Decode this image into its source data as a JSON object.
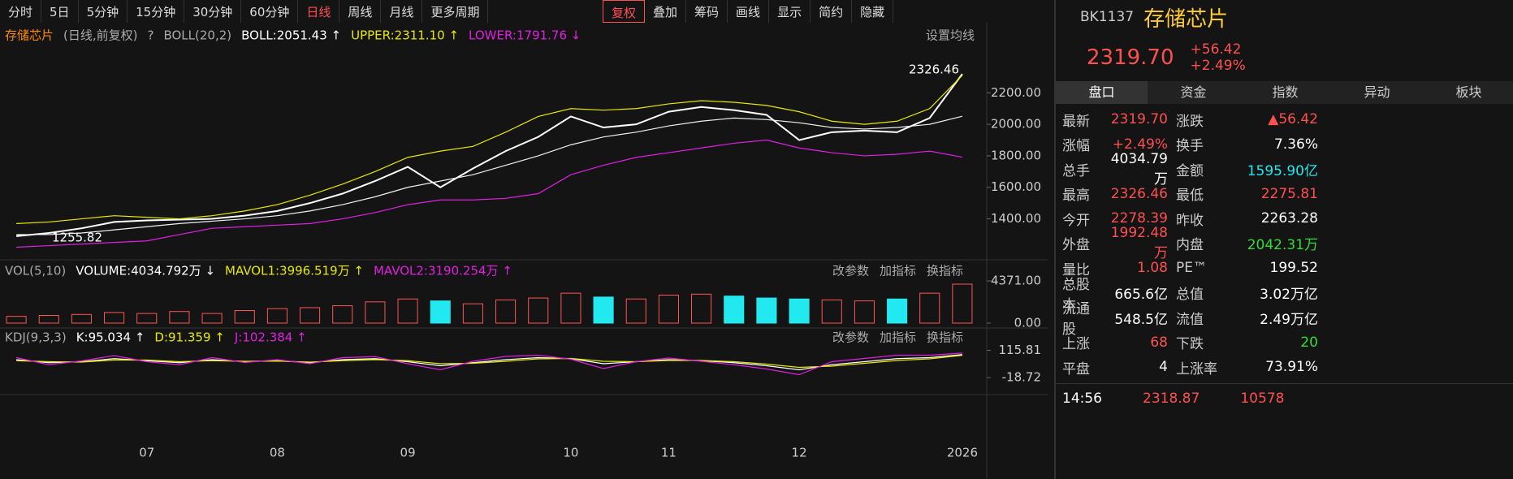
{
  "toolbar": {
    "periods": [
      "分时",
      "5日",
      "5分钟",
      "15分钟",
      "30分钟",
      "60分钟",
      "日线",
      "周线",
      "月线",
      "更多周期"
    ],
    "tools": [
      "复权",
      "叠加",
      "筹码",
      "画线",
      "显示",
      "简约",
      "隐藏"
    ]
  },
  "legend": {
    "name": "存储芯片",
    "mode": "(日线,前复权)",
    "help": "?",
    "indicator": "BOLL(20,2)",
    "boll": "BOLL:2051.43 ↑",
    "upper": "UPPER:2311.10 ↑",
    "lower": "LOWER:1791.76 ↓",
    "setting": "设置均线"
  },
  "chart_data": [
    {
      "type": "line",
      "categories": [
        null,
        null,
        null,
        null,
        "07",
        null,
        null,
        null,
        "08",
        null,
        null,
        null,
        "09",
        null,
        null,
        null,
        null,
        "10",
        null,
        null,
        "11",
        null,
        null,
        null,
        "12",
        null,
        null,
        null,
        null,
        "2026"
      ],
      "series": [
        {
          "name": "close",
          "color": "#ffffff",
          "values": [
            1290,
            1310,
            1340,
            1380,
            1390,
            1395,
            1400,
            1420,
            1450,
            1500,
            1560,
            1640,
            1730,
            1600,
            1720,
            1830,
            1920,
            2050,
            1980,
            2000,
            2080,
            2110,
            2090,
            2060,
            1900,
            1950,
            1960,
            1950,
            2040,
            2319.7
          ]
        },
        {
          "name": "upper",
          "color": "#e8e800",
          "values": [
            1370,
            1380,
            1400,
            1420,
            1410,
            1400,
            1420,
            1450,
            1490,
            1550,
            1620,
            1700,
            1790,
            1830,
            1860,
            1950,
            2050,
            2100,
            2090,
            2100,
            2130,
            2150,
            2140,
            2120,
            2080,
            2020,
            2000,
            2020,
            2100,
            2311.1
          ]
        },
        {
          "name": "mid",
          "color": "#f0f0f0",
          "values": [
            1300,
            1300,
            1310,
            1330,
            1350,
            1370,
            1385,
            1400,
            1420,
            1450,
            1490,
            1540,
            1600,
            1640,
            1680,
            1740,
            1800,
            1870,
            1920,
            1950,
            1990,
            2020,
            2040,
            2030,
            2010,
            1980,
            1970,
            1980,
            2000,
            2051.43
          ]
        },
        {
          "name": "lower",
          "color": "#e020e0",
          "values": [
            1220,
            1230,
            1240,
            1250,
            1260,
            1300,
            1340,
            1350,
            1360,
            1370,
            1400,
            1440,
            1490,
            1520,
            1520,
            1530,
            1560,
            1680,
            1740,
            1790,
            1820,
            1850,
            1880,
            1900,
            1850,
            1820,
            1800,
            1810,
            1830,
            1791.76
          ]
        }
      ],
      "ylim": [
        1140,
        2480
      ],
      "yticks": [
        {
          "value": 2200,
          "label": "2200.00"
        },
        {
          "value": 2000,
          "label": "2000.00"
        },
        {
          "value": 1800,
          "label": "1800.00"
        },
        {
          "value": 1600,
          "label": "1600.00"
        },
        {
          "value": 1400,
          "label": "1400.00"
        }
      ],
      "annotations": [
        "2326.46",
        "1255.82"
      ]
    },
    {
      "type": "bar",
      "header": [
        "VOL(5,10)",
        "VOLUME:4034.792万 ↓",
        "MAVOL1:3996.519万 ↑",
        "MAVOL2:3190.254万 ↑"
      ],
      "buttons": [
        "改参数",
        "加指标",
        "换指标"
      ],
      "values": [
        700,
        800,
        900,
        1100,
        1000,
        1200,
        1000,
        1300,
        1500,
        1600,
        1800,
        2200,
        2500,
        2300,
        2000,
        2400,
        2600,
        3100,
        2700,
        2500,
        2900,
        3000,
        2800,
        2600,
        2500,
        2400,
        2300,
        2500,
        3100,
        4034.792
      ],
      "up_color": "#ff5555",
      "down_color": "#22e8f0",
      "ylim": [
        0,
        4371
      ],
      "yticks": [
        {
          "value": 4371,
          "label": "4371.00"
        },
        {
          "value": 0,
          "label": "0.00"
        }
      ]
    },
    {
      "type": "line",
      "header": [
        "KDJ(9,3,3)",
        "K:95.034 ↑",
        "D:91.359 ↑",
        "J:102.384 ↑"
      ],
      "buttons": [
        "改参数",
        "加指标",
        "换指标"
      ],
      "series": [
        {
          "name": "K",
          "color": "#ffffff",
          "values": [
            70,
            55,
            60,
            75,
            65,
            55,
            70,
            60,
            65,
            55,
            70,
            75,
            60,
            40,
            55,
            70,
            80,
            75,
            50,
            60,
            70,
            65,
            55,
            40,
            20,
            45,
            60,
            75,
            80,
            95.034
          ]
        },
        {
          "name": "D",
          "color": "#e8e800",
          "values": [
            65,
            60,
            58,
            68,
            68,
            60,
            65,
            62,
            63,
            58,
            65,
            70,
            65,
            50,
            52,
            62,
            74,
            76,
            62,
            60,
            66,
            66,
            60,
            48,
            32,
            38,
            52,
            66,
            74,
            91.359
          ]
        },
        {
          "name": "J",
          "color": "#e020e0",
          "values": [
            80,
            45,
            64,
            90,
            60,
            45,
            80,
            56,
            70,
            50,
            80,
            85,
            50,
            20,
            62,
            86,
            92,
            72,
            26,
            60,
            78,
            62,
            45,
            24,
            -4,
            60,
            76,
            92,
            92,
            102.384
          ]
        }
      ],
      "ylim": [
        -30,
        130
      ],
      "yticks": [
        {
          "value": 115.81,
          "label": "115.81"
        },
        {
          "value": -18.72,
          "label": "-18.72"
        }
      ]
    }
  ],
  "quote": {
    "code": "BK1137",
    "name": "存储芯片",
    "price": "2319.70",
    "change": "+56.42",
    "pct": "+2.49%",
    "tabs": [
      "盘口",
      "资金",
      "指数",
      "异动",
      "板块"
    ],
    "rows": [
      [
        "最新",
        "2319.70",
        "#ff5050",
        "涨跌",
        "▲56.42",
        "#ff5050"
      ],
      [
        "涨幅",
        "+2.49%",
        "#ff5050",
        "换手",
        "7.36%",
        "#ffffff"
      ],
      [
        "总手",
        "4034.79万",
        "#ffffff",
        "金额",
        "1595.90亿",
        "#22e8f0"
      ],
      [
        "最高",
        "2326.46",
        "#ff5050",
        "最低",
        "2275.81",
        "#ff5050"
      ],
      [
        "今开",
        "2278.39",
        "#ff5050",
        "昨收",
        "2263.28",
        "#ffffff"
      ],
      [
        "外盘",
        "1992.48万",
        "#ff5050",
        "内盘",
        "2042.31万",
        "#33dd33"
      ],
      [
        "量比",
        "1.08",
        "#ff5050",
        "PE™",
        "199.52",
        "#ffffff"
      ],
      [
        "总股本",
        "665.6亿",
        "#ffffff",
        "总值",
        "3.02万亿",
        "#ffffff"
      ],
      [
        "流通股",
        "548.5亿",
        "#ffffff",
        "流值",
        "2.49万亿",
        "#ffffff"
      ],
      [
        "上涨",
        "68",
        "#ff5050",
        "下跌",
        "20",
        "#33dd33"
      ],
      [
        "平盘",
        "4",
        "#ffffff",
        "上涨率",
        "73.91%",
        "#ffffff"
      ]
    ],
    "tick": [
      "14:56",
      "2318.87",
      "10578"
    ]
  }
}
